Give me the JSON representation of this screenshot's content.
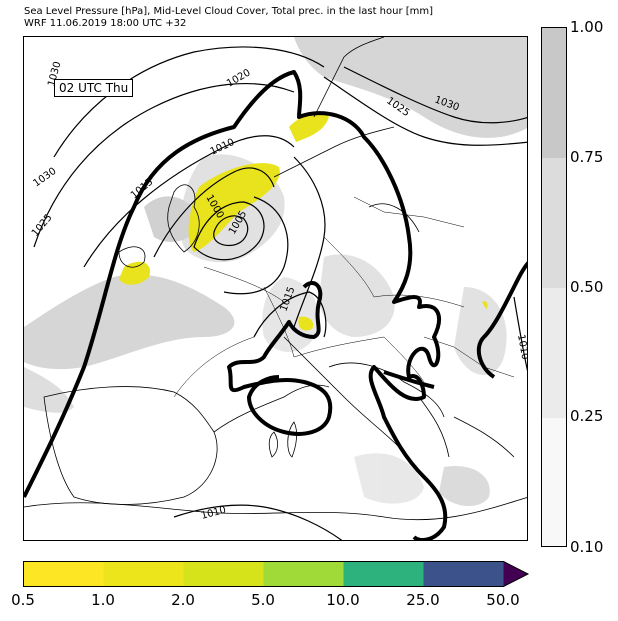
{
  "header": {
    "line1": "Sea Level Pressure [hPa], Mid-Level Cloud Cover, Total prec. in the last hour [mm]",
    "line2": "WRF 11.06.2019 18:00 UTC +32"
  },
  "map": {
    "time_label": "02 UTC Thu",
    "isobar_labels": [
      "1030",
      "1030",
      "1025",
      "1020",
      "1015",
      "1010",
      "1005",
      "1000",
      "1025",
      "1030",
      "1015",
      "1010",
      "1010"
    ]
  },
  "cloud_colorbar": {
    "ticks": [
      "1.00",
      "0.75",
      "0.50",
      "0.25",
      "0.10"
    ],
    "colors": [
      "#c8c8c8",
      "#dcdcdc",
      "#ebebeb",
      "#f8f8f8"
    ]
  },
  "precip_colorbar": {
    "ticks": [
      "0.5",
      "1.0",
      "2.0",
      "5.0",
      "10.0",
      "25.0",
      "50.0"
    ],
    "colors": [
      "#fde725",
      "#ece51b",
      "#d6e21a",
      "#a0da39",
      "#2db27d",
      "#3b528b",
      "#440154"
    ]
  }
}
